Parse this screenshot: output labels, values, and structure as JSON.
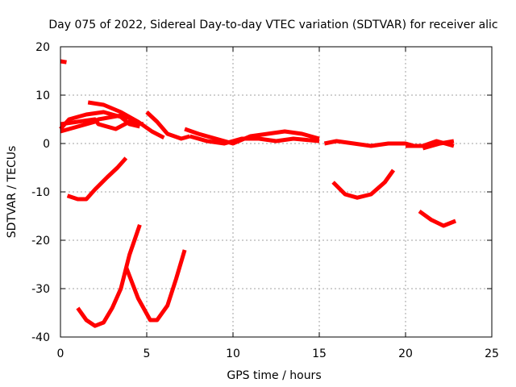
{
  "chart_data": {
    "type": "line",
    "title": "Day 075 of 2022, Sidereal Day-to-day VTEC variation (SDTVAR) for receiver alic",
    "xlabel": "GPS time / hours",
    "ylabel": "SDTVAR / TECUs",
    "xlim": [
      0,
      25
    ],
    "ylim": [
      -40,
      20
    ],
    "x_ticks": [
      0,
      5,
      10,
      15,
      20,
      25
    ],
    "y_ticks": [
      -40,
      -30,
      -20,
      -10,
      0,
      10,
      20
    ],
    "grid": true,
    "series_color": "#ff0000",
    "series": [
      {
        "name": "s1",
        "points": [
          [
            0.0,
            17.0
          ],
          [
            0.35,
            16.8
          ]
        ]
      },
      {
        "name": "s2",
        "points": [
          [
            0.0,
            3.0
          ],
          [
            0.5,
            5.0
          ],
          [
            1.5,
            6.0
          ],
          [
            2.5,
            6.5
          ],
          [
            3.5,
            5.5
          ],
          [
            4.0,
            4.0
          ],
          [
            4.6,
            3.5
          ]
        ]
      },
      {
        "name": "s3",
        "points": [
          [
            0.0,
            4.0
          ],
          [
            1.0,
            4.5
          ],
          [
            2.0,
            5.0
          ],
          [
            2.2,
            4.0
          ],
          [
            3.2,
            3.0
          ],
          [
            4.0,
            4.5
          ],
          [
            4.8,
            4.0
          ]
        ]
      },
      {
        "name": "s4",
        "points": [
          [
            0.0,
            2.5
          ],
          [
            1.0,
            3.5
          ],
          [
            2.0,
            4.5
          ],
          [
            2.2,
            5.0
          ],
          [
            3.5,
            5.8
          ],
          [
            4.2,
            5.0
          ]
        ]
      },
      {
        "name": "s5",
        "points": [
          [
            1.6,
            8.5
          ],
          [
            2.5,
            8.0
          ],
          [
            3.5,
            6.5
          ],
          [
            4.5,
            4.5
          ],
          [
            5.3,
            2.5
          ],
          [
            6.0,
            1.2
          ]
        ]
      },
      {
        "name": "s6",
        "points": [
          [
            5.0,
            6.5
          ],
          [
            5.6,
            4.5
          ],
          [
            6.2,
            2.0
          ],
          [
            7.0,
            1.0
          ],
          [
            7.5,
            1.5
          ]
        ]
      },
      {
        "name": "s7",
        "points": [
          [
            7.2,
            3.0
          ],
          [
            8.0,
            2.0
          ],
          [
            9.0,
            1.0
          ],
          [
            10.0,
            0.0
          ],
          [
            11.0,
            1.5
          ],
          [
            12.0,
            2.0
          ],
          [
            13.0,
            2.5
          ],
          [
            14.0,
            2.0
          ],
          [
            15.0,
            1.0
          ]
        ]
      },
      {
        "name": "s8",
        "points": [
          [
            7.5,
            1.5
          ],
          [
            8.5,
            0.5
          ],
          [
            9.5,
            0.0
          ],
          [
            10.5,
            1.0
          ],
          [
            11.5,
            1.0
          ],
          [
            12.5,
            0.5
          ],
          [
            13.5,
            1.0
          ],
          [
            15.0,
            0.5
          ]
        ]
      },
      {
        "name": "s9",
        "points": [
          [
            15.3,
            0.0
          ],
          [
            16.0,
            0.5
          ],
          [
            17.0,
            0.0
          ],
          [
            18.0,
            -0.5
          ],
          [
            19.0,
            0.0
          ],
          [
            20.0,
            0.0
          ],
          [
            20.5,
            -0.5
          ]
        ]
      },
      {
        "name": "s10",
        "points": [
          [
            20.0,
            -0.5
          ],
          [
            21.0,
            -0.5
          ],
          [
            21.8,
            0.5
          ],
          [
            22.3,
            0.0
          ],
          [
            22.8,
            -0.5
          ]
        ]
      },
      {
        "name": "s11",
        "points": [
          [
            21.0,
            -1.0
          ],
          [
            22.0,
            0.0
          ],
          [
            22.8,
            0.5
          ]
        ]
      },
      {
        "name": "s12",
        "points": [
          [
            0.4,
            -10.8
          ],
          [
            1.0,
            -11.5
          ],
          [
            1.5,
            -11.5
          ],
          [
            2.0,
            -9.5
          ],
          [
            2.7,
            -7.0
          ],
          [
            3.3,
            -5.0
          ],
          [
            3.8,
            -3.0
          ]
        ]
      },
      {
        "name": "s13",
        "points": [
          [
            15.8,
            -8.0
          ],
          [
            16.5,
            -10.5
          ],
          [
            17.2,
            -11.2
          ],
          [
            18.0,
            -10.5
          ],
          [
            18.8,
            -8.0
          ],
          [
            19.3,
            -5.5
          ]
        ]
      },
      {
        "name": "s14",
        "points": [
          [
            20.8,
            -14.0
          ],
          [
            21.5,
            -15.8
          ],
          [
            22.2,
            -17.0
          ],
          [
            22.9,
            -16.0
          ]
        ]
      },
      {
        "name": "s15",
        "points": [
          [
            1.0,
            -34.0
          ],
          [
            1.5,
            -36.5
          ],
          [
            2.0,
            -37.7
          ],
          [
            2.5,
            -37.0
          ],
          [
            3.0,
            -34.0
          ],
          [
            3.5,
            -30.0
          ],
          [
            4.0,
            -23.0
          ],
          [
            4.6,
            -16.8
          ]
        ]
      },
      {
        "name": "s16",
        "points": [
          [
            3.8,
            -25.5
          ],
          [
            4.5,
            -32.0
          ],
          [
            5.2,
            -36.5
          ],
          [
            5.6,
            -36.5
          ],
          [
            6.2,
            -33.5
          ],
          [
            6.7,
            -28.0
          ],
          [
            7.2,
            -22.0
          ]
        ]
      }
    ]
  }
}
